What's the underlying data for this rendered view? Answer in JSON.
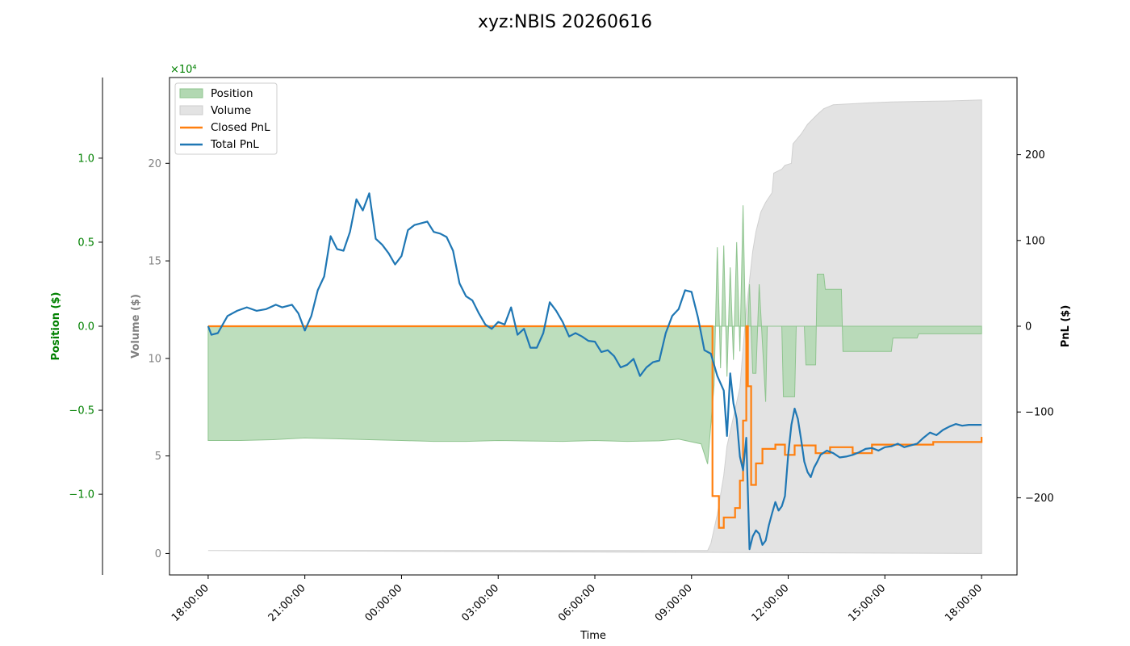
{
  "chart_data": {
    "type": "line",
    "title": "xyz:NBIS 20260616",
    "xlabel": "Time",
    "x_ticks": [
      "18:00:00",
      "21:00:00",
      "00:00:00",
      "03:00:00",
      "06:00:00",
      "09:00:00",
      "12:00:00",
      "15:00:00",
      "18:00:00"
    ],
    "x_range_hours": [
      -1.2,
      25.1
    ],
    "axes": {
      "position": {
        "label": "Position ($)",
        "color": "#008000",
        "scale_label": "×10⁴",
        "ticks": [
          1.0,
          0.5,
          0.0,
          -0.5,
          -1.0
        ],
        "tick_labels": [
          "1.0",
          "0.5",
          "0.0",
          "−0.5",
          "−1.0"
        ],
        "range": [
          -1.48,
          1.48
        ]
      },
      "volume": {
        "label": "Volume ($)",
        "color": "#808080",
        "ticks": [
          0,
          5,
          10,
          15,
          20
        ],
        "tick_labels": [
          "0",
          "5",
          "10",
          "15",
          "20"
        ],
        "range": [
          -1.1,
          24.4
        ]
      },
      "pnl": {
        "label": "PnL ($)",
        "color": "#000000",
        "ticks": [
          200,
          100,
          0,
          -100,
          -200
        ],
        "tick_labels": [
          "200",
          "100",
          "0",
          "−100",
          "−200"
        ],
        "range": [
          -290,
          290
        ]
      }
    },
    "legend": {
      "placement": "top-left",
      "entries": [
        {
          "label": "Position",
          "kind": "patch",
          "color": "#b2d8b2",
          "edge": "#8fc48f"
        },
        {
          "label": "Volume",
          "kind": "patch",
          "color": "#e3e3e3",
          "edge": "#cccccc"
        },
        {
          "label": "Closed PnL",
          "kind": "line",
          "color": "#ff7f0e"
        },
        {
          "label": "Total PnL",
          "kind": "line",
          "color": "#1f77b4"
        }
      ]
    },
    "series": [
      {
        "name": "Position",
        "type": "area",
        "color": "#b2d8b2",
        "points": [
          [
            0,
            0
          ],
          [
            0,
            -0.68
          ],
          [
            1,
            -0.68
          ],
          [
            2,
            -0.675
          ],
          [
            3,
            -0.665
          ],
          [
            4,
            -0.67
          ],
          [
            5,
            -0.675
          ],
          [
            6,
            -0.68
          ],
          [
            7,
            -0.685
          ],
          [
            8,
            -0.685
          ],
          [
            9,
            -0.68
          ],
          [
            10,
            -0.683
          ],
          [
            11,
            -0.685
          ],
          [
            12,
            -0.68
          ],
          [
            13,
            -0.685
          ],
          [
            14,
            -0.682
          ],
          [
            14.6,
            -0.672
          ],
          [
            15.3,
            -0.7
          ],
          [
            15.5,
            -0.82
          ],
          [
            15.7,
            -0.35
          ],
          [
            15.8,
            0.47
          ],
          [
            15.9,
            -0.25
          ],
          [
            16.0,
            0.48
          ],
          [
            16.1,
            -0.3
          ],
          [
            16.2,
            0.35
          ],
          [
            16.3,
            -0.2
          ],
          [
            16.4,
            0.5
          ],
          [
            16.5,
            -0.15
          ],
          [
            16.6,
            0.72
          ],
          [
            16.7,
            -0.25
          ],
          [
            16.8,
            0.25
          ],
          [
            16.9,
            -0.28
          ],
          [
            17.0,
            -0.28
          ],
          [
            17.1,
            0.25
          ],
          [
            17.3,
            -0.45
          ],
          [
            17.35,
            0.0
          ],
          [
            17.8,
            0.0
          ],
          [
            17.85,
            -0.42
          ],
          [
            18.2,
            -0.42
          ],
          [
            18.25,
            0.0
          ],
          [
            18.5,
            0.0
          ],
          [
            18.55,
            -0.23
          ],
          [
            18.85,
            -0.23
          ],
          [
            18.9,
            0.31
          ],
          [
            19.1,
            0.31
          ],
          [
            19.15,
            0.22
          ],
          [
            19.65,
            0.22
          ],
          [
            19.7,
            -0.15
          ],
          [
            21.2,
            -0.15
          ],
          [
            21.25,
            -0.07
          ],
          [
            22.0,
            -0.07
          ],
          [
            22.05,
            -0.045
          ],
          [
            24,
            -0.045
          ],
          [
            24,
            0
          ]
        ]
      },
      {
        "name": "Volume",
        "type": "area",
        "color": "#e3e3e3",
        "points": [
          [
            0,
            0.15
          ],
          [
            15.5,
            0.15
          ],
          [
            15.6,
            0.5
          ],
          [
            15.8,
            2
          ],
          [
            16.0,
            4.0
          ],
          [
            16.1,
            5.5
          ],
          [
            16.3,
            7
          ],
          [
            16.5,
            8.5
          ],
          [
            16.6,
            10.5
          ],
          [
            16.7,
            12.5
          ],
          [
            16.8,
            14
          ],
          [
            16.9,
            15.5
          ],
          [
            17.0,
            16.5
          ],
          [
            17.15,
            17.5
          ],
          [
            17.3,
            18
          ],
          [
            17.5,
            18.5
          ],
          [
            17.55,
            19.5
          ],
          [
            17.8,
            19.7
          ],
          [
            17.9,
            19.9
          ],
          [
            18.1,
            20
          ],
          [
            18.15,
            21
          ],
          [
            18.4,
            21.5
          ],
          [
            18.6,
            22
          ],
          [
            18.9,
            22.5
          ],
          [
            19.1,
            22.8
          ],
          [
            19.4,
            23.0
          ],
          [
            20.5,
            23.1
          ],
          [
            21.2,
            23.15
          ],
          [
            23,
            23.2
          ],
          [
            24,
            23.25
          ],
          [
            24,
            0
          ]
        ]
      },
      {
        "name": "Closed PnL",
        "type": "line",
        "color": "#ff7f0e",
        "points": [
          [
            0,
            0
          ],
          [
            15.65,
            0
          ],
          [
            15.65,
            -198
          ],
          [
            15.85,
            -198
          ],
          [
            15.85,
            -235
          ],
          [
            16.0,
            -235
          ],
          [
            16.0,
            -223
          ],
          [
            16.35,
            -223
          ],
          [
            16.35,
            -212
          ],
          [
            16.5,
            -212
          ],
          [
            16.5,
            -180
          ],
          [
            16.6,
            -180
          ],
          [
            16.6,
            -110
          ],
          [
            16.7,
            -110
          ],
          [
            16.7,
            0
          ],
          [
            16.75,
            0
          ],
          [
            16.75,
            -70
          ],
          [
            16.85,
            -70
          ],
          [
            16.85,
            -185
          ],
          [
            17.0,
            -185
          ],
          [
            17.0,
            -160
          ],
          [
            17.2,
            -160
          ],
          [
            17.2,
            -143
          ],
          [
            17.6,
            -143
          ],
          [
            17.6,
            -138
          ],
          [
            17.9,
            -138
          ],
          [
            17.9,
            -150
          ],
          [
            18.2,
            -150
          ],
          [
            18.2,
            -139
          ],
          [
            18.85,
            -139
          ],
          [
            18.85,
            -148
          ],
          [
            19.3,
            -148
          ],
          [
            19.3,
            -141
          ],
          [
            20.0,
            -141
          ],
          [
            20.0,
            -148
          ],
          [
            20.6,
            -148
          ],
          [
            20.6,
            -138
          ],
          [
            22.5,
            -138
          ],
          [
            22.5,
            -135
          ],
          [
            24,
            -135
          ],
          [
            24,
            -129
          ]
        ]
      },
      {
        "name": "Total PnL",
        "type": "line",
        "color": "#1f77b4",
        "points": [
          [
            0,
            0
          ],
          [
            0.1,
            -10
          ],
          [
            0.3,
            -8
          ],
          [
            0.6,
            12
          ],
          [
            0.9,
            18
          ],
          [
            1.2,
            22
          ],
          [
            1.5,
            18
          ],
          [
            1.8,
            20
          ],
          [
            2.1,
            25
          ],
          [
            2.3,
            22
          ],
          [
            2.6,
            25
          ],
          [
            2.8,
            15
          ],
          [
            3.0,
            -5
          ],
          [
            3.2,
            12
          ],
          [
            3.4,
            42
          ],
          [
            3.6,
            58
          ],
          [
            3.8,
            105
          ],
          [
            4.0,
            90
          ],
          [
            4.2,
            88
          ],
          [
            4.4,
            110
          ],
          [
            4.6,
            148
          ],
          [
            4.8,
            135
          ],
          [
            5.0,
            155
          ],
          [
            5.2,
            102
          ],
          [
            5.4,
            95
          ],
          [
            5.6,
            85
          ],
          [
            5.8,
            72
          ],
          [
            6.0,
            82
          ],
          [
            6.2,
            112
          ],
          [
            6.4,
            118
          ],
          [
            6.6,
            120
          ],
          [
            6.8,
            122
          ],
          [
            7.0,
            110
          ],
          [
            7.2,
            108
          ],
          [
            7.4,
            104
          ],
          [
            7.6,
            88
          ],
          [
            7.8,
            50
          ],
          [
            8.0,
            35
          ],
          [
            8.2,
            30
          ],
          [
            8.4,
            15
          ],
          [
            8.6,
            2
          ],
          [
            8.8,
            -3
          ],
          [
            9.0,
            5
          ],
          [
            9.2,
            2
          ],
          [
            9.4,
            22
          ],
          [
            9.6,
            -10
          ],
          [
            9.8,
            -3
          ],
          [
            10.0,
            -25
          ],
          [
            10.2,
            -25
          ],
          [
            10.4,
            -8
          ],
          [
            10.6,
            28
          ],
          [
            10.8,
            18
          ],
          [
            11.0,
            5
          ],
          [
            11.2,
            -12
          ],
          [
            11.4,
            -8
          ],
          [
            11.6,
            -12
          ],
          [
            11.8,
            -17
          ],
          [
            12.0,
            -18
          ],
          [
            12.2,
            -30
          ],
          [
            12.4,
            -28
          ],
          [
            12.6,
            -35
          ],
          [
            12.8,
            -48
          ],
          [
            13.0,
            -45
          ],
          [
            13.2,
            -38
          ],
          [
            13.4,
            -58
          ],
          [
            13.6,
            -48
          ],
          [
            13.8,
            -42
          ],
          [
            14.0,
            -40
          ],
          [
            14.2,
            -8
          ],
          [
            14.4,
            12
          ],
          [
            14.6,
            20
          ],
          [
            14.8,
            42
          ],
          [
            15.0,
            40
          ],
          [
            15.2,
            10
          ],
          [
            15.4,
            -28
          ],
          [
            15.6,
            -32
          ],
          [
            15.8,
            -58
          ],
          [
            16.0,
            -75
          ],
          [
            16.1,
            -128
          ],
          [
            16.2,
            -55
          ],
          [
            16.3,
            -90
          ],
          [
            16.4,
            -108
          ],
          [
            16.5,
            -152
          ],
          [
            16.6,
            -168
          ],
          [
            16.7,
            -130
          ],
          [
            16.8,
            -260
          ],
          [
            16.9,
            -245
          ],
          [
            17.0,
            -238
          ],
          [
            17.1,
            -242
          ],
          [
            17.2,
            -255
          ],
          [
            17.3,
            -250
          ],
          [
            17.4,
            -232
          ],
          [
            17.5,
            -218
          ],
          [
            17.6,
            -205
          ],
          [
            17.7,
            -215
          ],
          [
            17.8,
            -210
          ],
          [
            17.9,
            -198
          ],
          [
            18.0,
            -150
          ],
          [
            18.1,
            -115
          ],
          [
            18.2,
            -96
          ],
          [
            18.3,
            -108
          ],
          [
            18.4,
            -132
          ],
          [
            18.5,
            -158
          ],
          [
            18.6,
            -170
          ],
          [
            18.7,
            -176
          ],
          [
            18.8,
            -165
          ],
          [
            18.9,
            -158
          ],
          [
            19.0,
            -150
          ],
          [
            19.2,
            -145
          ],
          [
            19.4,
            -148
          ],
          [
            19.6,
            -153
          ],
          [
            19.8,
            -152
          ],
          [
            20.0,
            -150
          ],
          [
            20.2,
            -147
          ],
          [
            20.4,
            -143
          ],
          [
            20.6,
            -142
          ],
          [
            20.8,
            -145
          ],
          [
            21.0,
            -141
          ],
          [
            21.2,
            -140
          ],
          [
            21.4,
            -137
          ],
          [
            21.6,
            -141
          ],
          [
            21.8,
            -139
          ],
          [
            22.0,
            -137
          ],
          [
            22.2,
            -130
          ],
          [
            22.4,
            -124
          ],
          [
            22.6,
            -127
          ],
          [
            22.8,
            -121
          ],
          [
            23.0,
            -117
          ],
          [
            23.2,
            -114
          ],
          [
            23.4,
            -116
          ],
          [
            23.6,
            -115
          ],
          [
            23.8,
            -115
          ],
          [
            24.0,
            -115
          ]
        ]
      }
    ]
  }
}
